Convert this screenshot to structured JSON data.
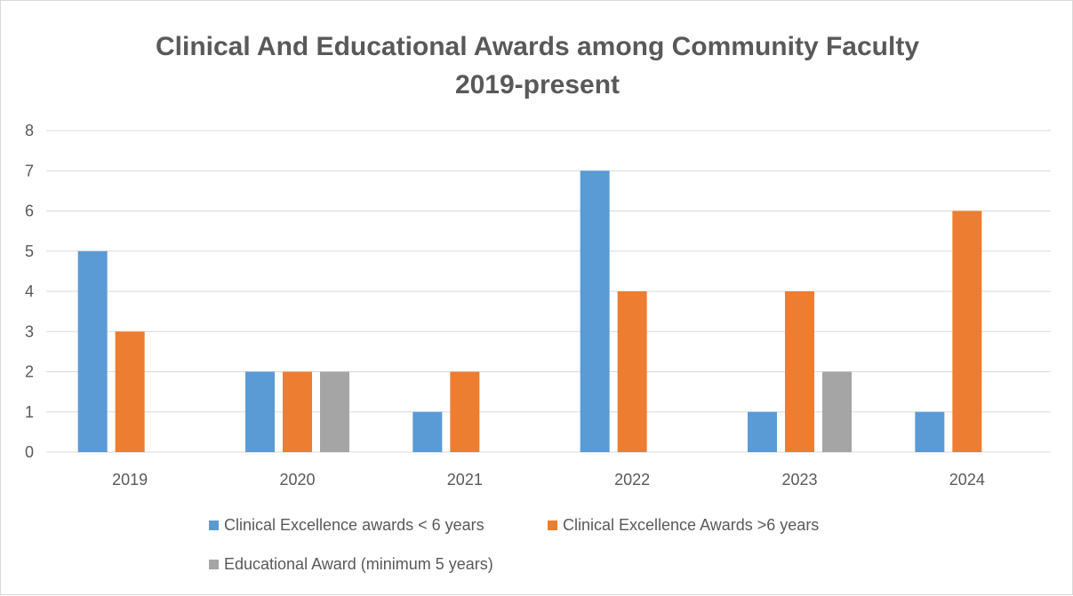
{
  "chart_data": {
    "type": "bar",
    "title_line1": "Clinical And Educational Awards among Community Faculty",
    "title_line2": "2019-present",
    "categories": [
      "2019",
      "2020",
      "2021",
      "2022",
      "2023",
      "2024"
    ],
    "series": [
      {
        "name": "Clinical Excellence awards < 6 years",
        "color": "#5b9bd5",
        "values": [
          5,
          2,
          1,
          7,
          1,
          1
        ]
      },
      {
        "name": "Clinical Excellence Awards >6 years",
        "color": "#ed7d31",
        "values": [
          3,
          2,
          2,
          4,
          4,
          6
        ]
      },
      {
        "name": "Educational Award (minimum 5 years)",
        "color": "#a5a5a5",
        "values": [
          0,
          2,
          0,
          0,
          2,
          0
        ]
      }
    ],
    "y_ticks": [
      "0",
      "1",
      "2",
      "3",
      "4",
      "5",
      "6",
      "7",
      "8"
    ],
    "ylim": [
      0,
      8
    ],
    "grid": true,
    "legend_position": "bottom",
    "gridline_color": "#d9d9d9"
  }
}
